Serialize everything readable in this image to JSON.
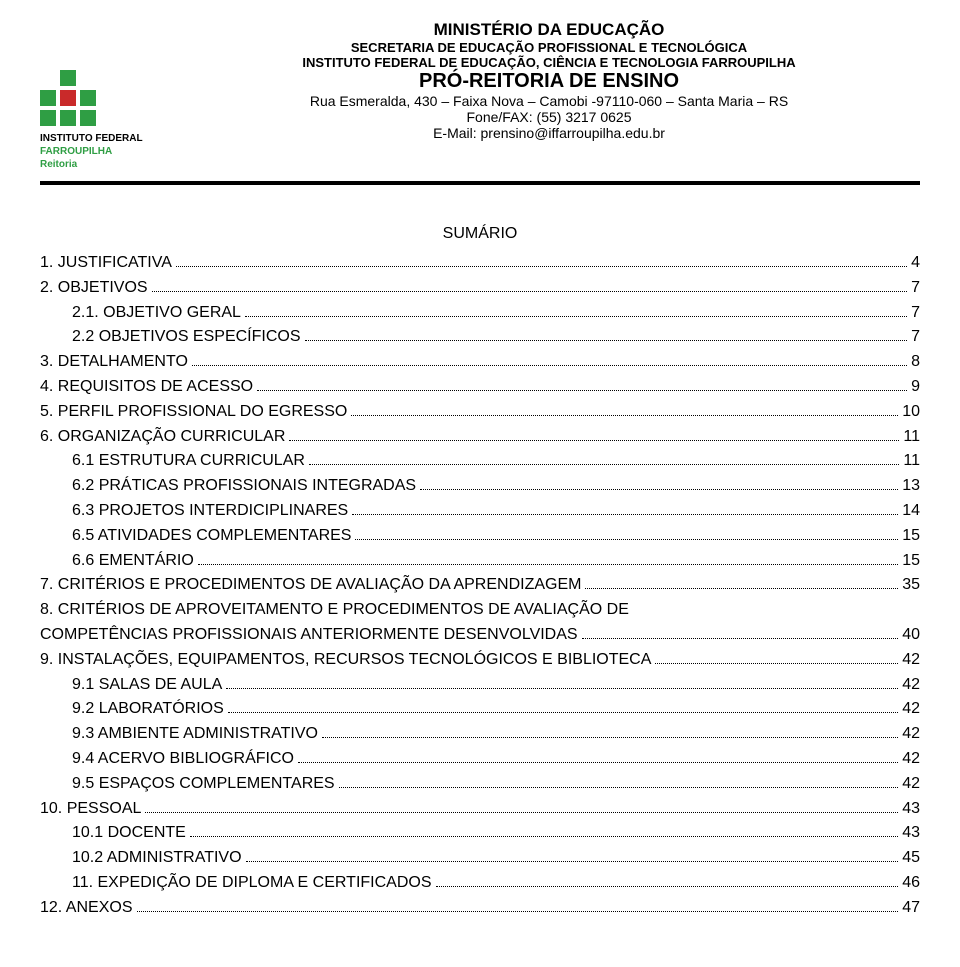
{
  "header": {
    "logo": {
      "line1": "INSTITUTO FEDERAL",
      "line2": "FARROUPILHA",
      "line3": "Reitoria"
    },
    "line1": "MINISTÉRIO DA EDUCAÇÃO",
    "line2": "SECRETARIA DE EDUCAÇÃO PROFISSIONAL E TECNOLÓGICA",
    "line3": "INSTITUTO FEDERAL DE EDUCAÇÃO, CIÊNCIA E TECNOLOGIA FARROUPILHA",
    "line4": "PRÓ-REITORIA DE ENSINO",
    "line5": "Rua Esmeralda, 430 – Faixa Nova – Camobi -97110-060 – Santa Maria – RS",
    "line6": "Fone/FAX: (55) 3217 0625",
    "line7": "E-Mail: prensino@iffarroupilha.edu.br"
  },
  "sumario_title": "SUMÁRIO",
  "toc": [
    {
      "indent": 0,
      "label": "1. JUSTIFICATIVA",
      "page": "4"
    },
    {
      "indent": 0,
      "label": "2. OBJETIVOS",
      "page": "7"
    },
    {
      "indent": 1,
      "label": "2.1. OBJETIVO GERAL",
      "page": "7"
    },
    {
      "indent": 1,
      "label": "2.2 OBJETIVOS ESPECÍFICOS",
      "page": "7"
    },
    {
      "indent": 0,
      "label": "3. DETALHAMENTO",
      "page": "8"
    },
    {
      "indent": 0,
      "label": "4. REQUISITOS DE ACESSO",
      "page": "9"
    },
    {
      "indent": 0,
      "label": "5. PERFIL PROFISSIONAL DO EGRESSO",
      "page": "10"
    },
    {
      "indent": 0,
      "label": "6. ORGANIZAÇÃO CURRICULAR",
      "page": "11"
    },
    {
      "indent": 1,
      "label": "6.1 ESTRUTURA CURRICULAR",
      "page": "11"
    },
    {
      "indent": 1,
      "label": "6.2 PRÁTICAS PROFISSIONAIS INTEGRADAS",
      "page": "13"
    },
    {
      "indent": 1,
      "label": "6.3 PROJETOS INTERDICIPLINARES",
      "page": "14"
    },
    {
      "indent": 1,
      "label": "6.5 ATIVIDADES COMPLEMENTARES",
      "page": "15"
    },
    {
      "indent": 1,
      "label": "6.6 EMENTÁRIO",
      "page": "15"
    },
    {
      "indent": 0,
      "label": "7. CRITÉRIOS E PROCEDIMENTOS DE AVALIAÇÃO DA APRENDIZAGEM",
      "page": "35"
    },
    {
      "indent": 0,
      "label": "8. CRITÉRIOS DE APROVEITAMENTO E PROCEDIMENTOS DE AVALIAÇÃO DE COMPETÊNCIAS PROFISSIONAIS ANTERIORMENTE DESENVOLVIDAS",
      "page": "40",
      "wrap": true
    },
    {
      "indent": 0,
      "label": "9. INSTALAÇÕES, EQUIPAMENTOS, RECURSOS TECNOLÓGICOS E BIBLIOTECA",
      "page": "42"
    },
    {
      "indent": 1,
      "label": "9.1 SALAS DE AULA",
      "page": "42"
    },
    {
      "indent": 1,
      "label": "9.2 LABORATÓRIOS",
      "page": "42"
    },
    {
      "indent": 1,
      "label": "9.3 AMBIENTE ADMINISTRATIVO",
      "page": "42"
    },
    {
      "indent": 1,
      "label": "9.4 ACERVO BIBLIOGRÁFICO",
      "page": "42"
    },
    {
      "indent": 1,
      "label": "9.5 ESPAÇOS COMPLEMENTARES",
      "page": "42"
    },
    {
      "indent": 0,
      "label": "10. PESSOAL",
      "page": "43"
    },
    {
      "indent": 1,
      "label": "10.1 DOCENTE",
      "page": "43"
    },
    {
      "indent": 1,
      "label": "10.2 ADMINISTRATIVO",
      "page": "45"
    },
    {
      "indent": 1,
      "label": "11. EXPEDIÇÃO DE DIPLOMA E CERTIFICADOS",
      "page": "46"
    },
    {
      "indent": 0,
      "label": "12. ANEXOS",
      "page": "47"
    }
  ]
}
